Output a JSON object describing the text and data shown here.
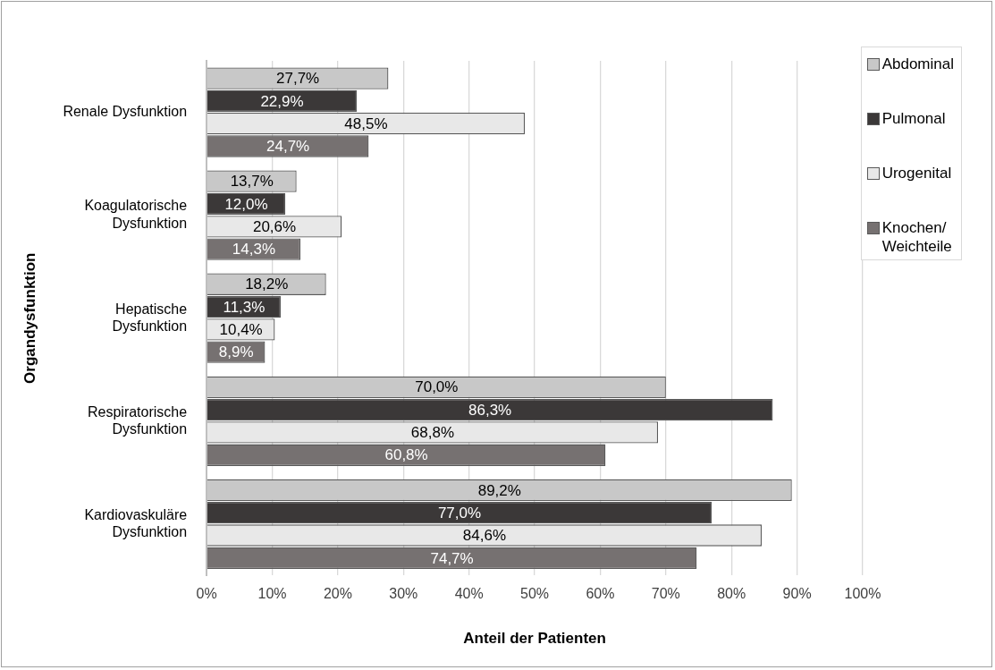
{
  "chart_data": {
    "type": "bar",
    "orientation": "horizontal",
    "xlabel": "Anteil der Patienten",
    "ylabel": "Organdysfunktion",
    "categories": [
      "Renale Dysfunktion",
      "Koagulatorische\nDysfunktion",
      "Hepatische\nDysfunktion",
      "Respiratorische\nDysfunktion",
      "Kardiovaskuläre\nDysfunktion"
    ],
    "series": [
      {
        "name": "Abdominal",
        "color": "#c8c8c8",
        "values": [
          27.7,
          13.7,
          18.2,
          70.0,
          89.2
        ],
        "value_labels": [
          "27,7%",
          "13,7%",
          "18,2%",
          "70,0%",
          "89,2%"
        ]
      },
      {
        "name": "Pulmonal",
        "color": "#3b3838",
        "values": [
          22.9,
          12.0,
          11.3,
          86.3,
          77.0
        ],
        "value_labels": [
          "22,9%",
          "12,0%",
          "11,3%",
          "86,3%",
          "77,0%"
        ]
      },
      {
        "name": "Urogenital",
        "color": "#e8e8e8",
        "values": [
          48.5,
          20.6,
          10.4,
          68.8,
          84.6
        ],
        "value_labels": [
          "48,5%",
          "20,6%",
          "10,4%",
          "68,8%",
          "84,6%"
        ]
      },
      {
        "name": "Knochen/\nWeichteile",
        "color": "#767171",
        "values": [
          24.7,
          14.3,
          8.9,
          60.8,
          74.7
        ],
        "value_labels": [
          "24,7%",
          "14,3%",
          "8,9%",
          "60,8%",
          "74,7%"
        ]
      }
    ],
    "xlim": [
      0,
      100
    ],
    "xticks": [
      {
        "value": 0,
        "label": "0%"
      },
      {
        "value": 10,
        "label": "10%"
      },
      {
        "value": 20,
        "label": "20%"
      },
      {
        "value": 30,
        "label": "30%"
      },
      {
        "value": 40,
        "label": "40%"
      },
      {
        "value": 50,
        "label": "50%"
      },
      {
        "value": 60,
        "label": "60%"
      },
      {
        "value": 70,
        "label": "70%"
      },
      {
        "value": 80,
        "label": "80%"
      },
      {
        "value": 90,
        "label": "90%"
      },
      {
        "value": 100,
        "label": "100%"
      }
    ],
    "grid": "x",
    "legend": "top right"
  }
}
